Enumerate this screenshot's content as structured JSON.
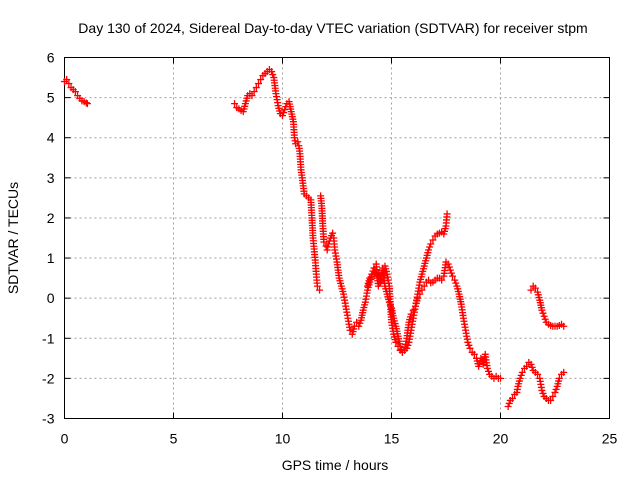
{
  "chart_data": {
    "type": "scatter",
    "title": "Day 130 of 2024, Sidereal Day-to-day VTEC variation (SDTVAR) for receiver stpm",
    "xlabel": "GPS time / hours",
    "ylabel": "SDTVAR / TECUs",
    "xlim": [
      0,
      25
    ],
    "ylim": [
      -3,
      6
    ],
    "xticks": [
      "0",
      "5",
      "10",
      "15",
      "20",
      "25"
    ],
    "yticks": [
      "-3",
      "-2",
      "-1",
      "0",
      "1",
      "2",
      "3",
      "4",
      "5",
      "6"
    ],
    "grid": true,
    "marker": "plus",
    "color": "#ff0000",
    "series": [
      {
        "segments": [
          [
            [
              0.0,
              5.4
            ],
            [
              0.1,
              5.45
            ],
            [
              0.2,
              5.35
            ],
            [
              0.3,
              5.25
            ],
            [
              0.4,
              5.2
            ],
            [
              0.5,
              5.15
            ],
            [
              0.6,
              5.05
            ],
            [
              0.7,
              4.98
            ],
            [
              0.8,
              4.92
            ],
            [
              0.9,
              4.9
            ],
            [
              1.0,
              4.87
            ],
            [
              1.05,
              4.85
            ]
          ],
          [
            [
              7.8,
              4.85
            ],
            [
              7.9,
              4.75
            ],
            [
              8.0,
              4.72
            ],
            [
              8.1,
              4.68
            ],
            [
              8.2,
              4.65
            ],
            [
              8.3,
              4.85
            ],
            [
              8.4,
              5.05
            ],
            [
              8.5,
              5.1
            ],
            [
              8.6,
              5.05
            ],
            [
              8.7,
              5.15
            ],
            [
              8.8,
              5.25
            ],
            [
              8.9,
              5.35
            ],
            [
              9.0,
              5.45
            ],
            [
              9.1,
              5.55
            ],
            [
              9.2,
              5.6
            ],
            [
              9.3,
              5.65
            ],
            [
              9.4,
              5.7
            ],
            [
              9.5,
              5.65
            ],
            [
              9.6,
              5.5
            ],
            [
              9.7,
              5.1
            ],
            [
              9.8,
              4.8
            ],
            [
              9.9,
              4.6
            ],
            [
              10.0,
              4.55
            ],
            [
              10.1,
              4.7
            ],
            [
              10.2,
              4.85
            ],
            [
              10.3,
              4.9
            ],
            [
              10.4,
              4.65
            ],
            [
              10.5,
              4.4
            ],
            [
              10.55,
              4.0
            ],
            [
              10.6,
              3.85
            ],
            [
              10.7,
              3.9
            ],
            [
              10.75,
              3.8
            ],
            [
              10.8,
              3.6
            ],
            [
              10.85,
              3.2
            ],
            [
              10.9,
              3.0
            ],
            [
              11.0,
              2.6
            ],
            [
              11.1,
              2.55
            ],
            [
              11.2,
              2.5
            ],
            [
              11.3,
              2.45
            ],
            [
              11.35,
              2.0
            ],
            [
              11.4,
              1.5
            ],
            [
              11.5,
              0.95
            ],
            [
              11.55,
              0.6
            ],
            [
              11.6,
              0.3
            ],
            [
              11.7,
              0.2
            ]
          ],
          [
            [
              11.75,
              2.55
            ],
            [
              11.8,
              2.3
            ],
            [
              11.85,
              1.8
            ],
            [
              11.9,
              1.4
            ],
            [
              12.0,
              1.3
            ],
            [
              12.05,
              1.2
            ],
            [
              12.1,
              1.35
            ],
            [
              12.2,
              1.5
            ],
            [
              12.3,
              1.62
            ],
            [
              12.35,
              1.5
            ],
            [
              12.4,
              1.2
            ],
            [
              12.5,
              0.9
            ],
            [
              12.6,
              0.5
            ],
            [
              12.7,
              0.3
            ],
            [
              12.8,
              0.1
            ],
            [
              12.9,
              -0.2
            ],
            [
              13.0,
              -0.5
            ],
            [
              13.1,
              -0.8
            ],
            [
              13.2,
              -0.9
            ],
            [
              13.3,
              -0.7
            ],
            [
              13.4,
              -0.6
            ],
            [
              13.5,
              -0.7
            ],
            [
              13.6,
              -0.55
            ],
            [
              13.7,
              -0.3
            ],
            [
              13.8,
              -0.1
            ],
            [
              13.9,
              0.2
            ],
            [
              14.0,
              0.4
            ],
            [
              14.1,
              0.6
            ],
            [
              14.2,
              0.75
            ],
            [
              14.3,
              0.85
            ],
            [
              14.35,
              0.5
            ],
            [
              14.4,
              0.3
            ],
            [
              14.5,
              0.5
            ],
            [
              14.6,
              0.7
            ],
            [
              14.7,
              0.3
            ],
            [
              14.8,
              0.1
            ],
            [
              14.9,
              -0.1
            ],
            [
              15.0,
              -0.25
            ],
            [
              15.1,
              -0.5
            ],
            [
              15.2,
              -0.7
            ],
            [
              15.3,
              -0.95
            ],
            [
              15.4,
              -1.2
            ],
            [
              15.5,
              -1.35
            ],
            [
              15.6,
              -1.3
            ],
            [
              15.7,
              -1.25
            ],
            [
              15.8,
              -1.1
            ],
            [
              15.9,
              -0.8
            ],
            [
              16.0,
              -0.5
            ],
            [
              16.1,
              -0.2
            ],
            [
              16.2,
              0.1
            ],
            [
              16.3,
              0.4
            ],
            [
              16.4,
              0.6
            ],
            [
              16.5,
              0.8
            ],
            [
              16.6,
              1.0
            ],
            [
              16.7,
              1.2
            ],
            [
              16.8,
              1.35
            ],
            [
              16.9,
              1.45
            ],
            [
              17.0,
              1.55
            ],
            [
              17.1,
              1.6
            ],
            [
              17.2,
              1.62
            ],
            [
              17.3,
              1.65
            ],
            [
              17.4,
              1.6
            ],
            [
              17.5,
              1.8
            ],
            [
              17.55,
              2.1
            ]
          ],
          [
            [
              13.9,
              0.3
            ],
            [
              14.0,
              0.5
            ],
            [
              14.1,
              0.6
            ],
            [
              14.2,
              0.55
            ],
            [
              14.3,
              0.7
            ],
            [
              14.4,
              0.6
            ],
            [
              14.5,
              0.4
            ],
            [
              14.6,
              0.75
            ],
            [
              14.7,
              0.8
            ],
            [
              14.8,
              0.6
            ],
            [
              14.9,
              0.3
            ],
            [
              15.0,
              -0.6
            ],
            [
              15.1,
              -0.9
            ],
            [
              15.2,
              -1.1
            ],
            [
              15.3,
              -1.2
            ],
            [
              15.4,
              -1.3
            ],
            [
              15.5,
              -1.35
            ],
            [
              15.6,
              -1.3
            ],
            [
              15.7,
              -1.0
            ],
            [
              15.8,
              -0.6
            ],
            [
              15.9,
              -0.4
            ],
            [
              16.0,
              -0.3
            ],
            [
              16.1,
              -0.2
            ],
            [
              16.2,
              0.0
            ],
            [
              16.3,
              0.1
            ],
            [
              16.4,
              0.2
            ],
            [
              16.5,
              0.3
            ],
            [
              16.6,
              0.4
            ],
            [
              16.7,
              0.45
            ],
            [
              16.8,
              0.38
            ],
            [
              16.9,
              0.4
            ],
            [
              17.0,
              0.45
            ],
            [
              17.1,
              0.5
            ],
            [
              17.2,
              0.5
            ],
            [
              17.3,
              0.45
            ],
            [
              17.4,
              0.55
            ],
            [
              17.5,
              0.9
            ],
            [
              17.6,
              0.85
            ],
            [
              17.7,
              0.7
            ],
            [
              17.8,
              0.55
            ],
            [
              17.9,
              0.45
            ],
            [
              18.0,
              0.3
            ],
            [
              18.1,
              0.1
            ],
            [
              18.2,
              -0.15
            ],
            [
              18.3,
              -0.5
            ],
            [
              18.4,
              -0.8
            ],
            [
              18.5,
              -1.1
            ],
            [
              18.6,
              -1.25
            ],
            [
              18.7,
              -1.35
            ],
            [
              18.8,
              -1.4
            ],
            [
              18.9,
              -1.5
            ],
            [
              19.0,
              -1.7
            ],
            [
              19.1,
              -1.5
            ],
            [
              19.2,
              -1.65
            ],
            [
              19.3,
              -1.4
            ],
            [
              19.4,
              -1.75
            ],
            [
              19.5,
              -1.9
            ],
            [
              19.6,
              -1.95
            ],
            [
              19.7,
              -2.0
            ],
            [
              19.8,
              -1.95
            ],
            [
              19.9,
              -2.0
            ],
            [
              20.0,
              -2.0
            ]
          ],
          [
            [
              20.35,
              -2.7
            ],
            [
              20.45,
              -2.55
            ],
            [
              20.55,
              -2.5
            ],
            [
              20.65,
              -2.4
            ],
            [
              20.75,
              -2.35
            ],
            [
              20.8,
              -2.2
            ],
            [
              20.9,
              -2.0
            ],
            [
              21.0,
              -1.85
            ],
            [
              21.1,
              -1.75
            ],
            [
              21.2,
              -1.7
            ],
            [
              21.3,
              -1.6
            ],
            [
              21.4,
              -1.65
            ],
            [
              21.5,
              -1.8
            ],
            [
              21.6,
              -1.85
            ],
            [
              21.7,
              -1.9
            ],
            [
              21.8,
              -2.0
            ],
            [
              21.9,
              -2.3
            ],
            [
              22.0,
              -2.45
            ],
            [
              22.1,
              -2.5
            ],
            [
              22.2,
              -2.55
            ],
            [
              22.3,
              -2.55
            ],
            [
              22.4,
              -2.45
            ],
            [
              22.5,
              -2.35
            ],
            [
              22.6,
              -2.2
            ],
            [
              22.7,
              -2.0
            ],
            [
              22.8,
              -1.9
            ],
            [
              22.9,
              -1.85
            ]
          ],
          [
            [
              21.4,
              0.2
            ],
            [
              21.5,
              0.3
            ],
            [
              21.6,
              0.25
            ],
            [
              21.7,
              0.15
            ],
            [
              21.8,
              -0.05
            ],
            [
              21.9,
              -0.3
            ],
            [
              22.0,
              -0.45
            ],
            [
              22.1,
              -0.6
            ],
            [
              22.2,
              -0.65
            ],
            [
              22.3,
              -0.68
            ],
            [
              22.4,
              -0.7
            ],
            [
              22.5,
              -0.7
            ],
            [
              22.6,
              -0.7
            ],
            [
              22.7,
              -0.68
            ],
            [
              22.8,
              -0.65
            ],
            [
              22.9,
              -0.7
            ]
          ]
        ]
      }
    ]
  }
}
